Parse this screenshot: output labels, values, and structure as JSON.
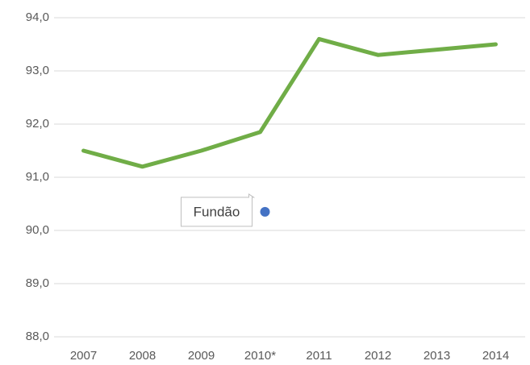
{
  "chart_data": {
    "type": "line",
    "categories": [
      "2007",
      "2008",
      "2009",
      "2010*",
      "2011",
      "2012",
      "2013",
      "2014"
    ],
    "series": [
      {
        "name": "",
        "color": "#70ad47",
        "values": [
          91.5,
          91.2,
          91.5,
          91.85,
          93.6,
          93.3,
          93.4,
          93.5
        ]
      },
      {
        "name": "Fundão",
        "color": "#4472c4",
        "values": [
          null,
          null,
          null,
          90.35,
          null,
          null,
          null,
          null
        ]
      }
    ],
    "ylim": [
      88,
      94
    ],
    "yticks": [
      {
        "value": 88,
        "label": "88,0"
      },
      {
        "value": 89,
        "label": "89,0"
      },
      {
        "value": 90,
        "label": "90,0"
      },
      {
        "value": 91,
        "label": "91,0"
      },
      {
        "value": 92,
        "label": "92,0"
      },
      {
        "value": 93,
        "label": "93,0"
      },
      {
        "value": 94,
        "label": "94,0"
      }
    ],
    "grid": true
  }
}
